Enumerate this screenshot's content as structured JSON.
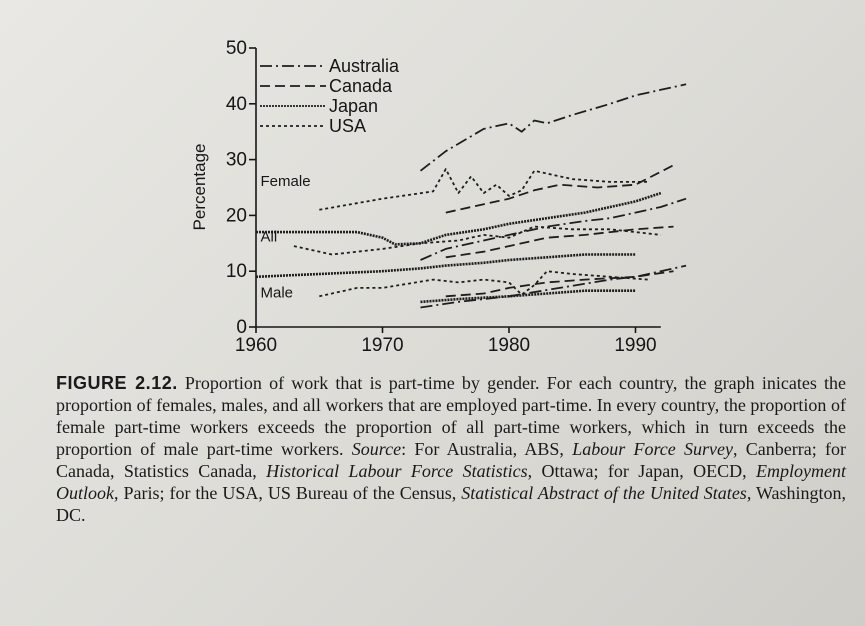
{
  "chart_data": {
    "type": "line",
    "title": "",
    "ylabel": "Percentage",
    "xlabel": "",
    "xlim": [
      1960,
      1995
    ],
    "ylim": [
      0,
      50
    ],
    "x_ticks": [
      1960,
      1970,
      1980,
      1990
    ],
    "y_ticks": [
      0,
      10,
      20,
      30,
      40,
      50
    ],
    "grid": false,
    "legend_position": "top-left",
    "legend": [
      {
        "name": "Australia",
        "dash": "12,4,2,4"
      },
      {
        "name": "Canada",
        "dash": "10,5"
      },
      {
        "name": "Japan",
        "dash": "2,1"
      },
      {
        "name": "USA",
        "dash": "3,3"
      }
    ],
    "group_labels": [
      {
        "text": "Female",
        "x": 1960.2,
        "y": 25.3
      },
      {
        "text": "All",
        "x": 1960.2,
        "y": 15.3
      },
      {
        "text": "Male",
        "x": 1960.2,
        "y": 5.3
      }
    ],
    "series": [
      {
        "country": "Australia",
        "group": "Female",
        "dash": "12,4,2,4",
        "width": 1.8,
        "x": [
          1973,
          1975,
          1978,
          1980,
          1981,
          1982,
          1983,
          1985,
          1988,
          1990,
          1992,
          1994
        ],
        "y": [
          28,
          31.5,
          35.5,
          36.5,
          35,
          37,
          36.5,
          38,
          40,
          41.5,
          42.5,
          43.5
        ]
      },
      {
        "country": "Canada",
        "group": "Female",
        "dash": "10,5",
        "width": 1.8,
        "x": [
          1975,
          1978,
          1980,
          1982,
          1984,
          1987,
          1990,
          1993
        ],
        "y": [
          20.5,
          22,
          23,
          24.5,
          25.5,
          25,
          25.5,
          29
        ]
      },
      {
        "country": "USA",
        "group": "Female",
        "dash": "3,3",
        "width": 1.8,
        "x": [
          1965,
          1970,
          1974,
          1975,
          1976,
          1977,
          1978,
          1979,
          1980,
          1981,
          1982,
          1985,
          1988,
          1991
        ],
        "y": [
          21,
          23,
          24.3,
          28.3,
          24,
          27,
          24,
          25.5,
          23.5,
          24.5,
          28,
          26.5,
          26,
          26
        ]
      },
      {
        "country": "Japan",
        "group": "Female",
        "dash": "2,1",
        "width": 2.6,
        "x": [
          1960,
          1968,
          1970,
          1971,
          1973,
          1975,
          1978,
          1980,
          1983,
          1986,
          1990,
          1992
        ],
        "y": [
          17,
          17,
          16,
          14.8,
          15,
          16.5,
          17.5,
          18.5,
          19.5,
          20.5,
          22.5,
          24
        ]
      },
      {
        "country": "Australia",
        "group": "All",
        "dash": "12,4,2,4",
        "width": 1.8,
        "x": [
          1973,
          1975,
          1978,
          1980,
          1983,
          1986,
          1988,
          1990,
          1992,
          1994
        ],
        "y": [
          12,
          14,
          15.5,
          16.5,
          18,
          19,
          19.5,
          20.5,
          21.5,
          23
        ]
      },
      {
        "country": "Canada",
        "group": "All",
        "dash": "10,5",
        "width": 1.8,
        "x": [
          1975,
          1978,
          1980,
          1983,
          1986,
          1988,
          1990,
          1993
        ],
        "y": [
          12.5,
          13.5,
          14.5,
          16,
          16.5,
          17,
          17.5,
          18
        ]
      },
      {
        "country": "USA",
        "group": "All",
        "dash": "3,3",
        "width": 1.8,
        "x": [
          1963,
          1966,
          1970,
          1973,
          1976,
          1978,
          1980,
          1982,
          1985,
          1988,
          1990,
          1992
        ],
        "y": [
          14.5,
          13,
          14,
          15,
          15.5,
          16.5,
          16,
          18,
          17.5,
          17.5,
          17,
          16.5
        ]
      },
      {
        "country": "Japan",
        "group": "All",
        "dash": "2,1",
        "width": 2.6,
        "x": [
          1960,
          1965,
          1970,
          1973,
          1975,
          1978,
          1980,
          1983,
          1986,
          1990
        ],
        "y": [
          9,
          9.5,
          10,
          10.5,
          11,
          11.5,
          12,
          12.5,
          13,
          13
        ]
      },
      {
        "country": "Australia",
        "group": "Male",
        "dash": "12,4,2,4",
        "width": 1.8,
        "x": [
          1973,
          1976,
          1980,
          1984,
          1988,
          1990,
          1992,
          1994
        ],
        "y": [
          3.5,
          4.5,
          5.5,
          7,
          8.5,
          9,
          10,
          11
        ]
      },
      {
        "country": "Canada",
        "group": "Male",
        "dash": "10,5",
        "width": 1.8,
        "x": [
          1975,
          1978,
          1980,
          1983,
          1986,
          1990,
          1993
        ],
        "y": [
          5.5,
          6,
          7,
          8,
          8.5,
          9,
          10
        ]
      },
      {
        "country": "USA",
        "group": "Male",
        "dash": "3,3",
        "width": 1.8,
        "x": [
          1965,
          1968,
          1970,
          1974,
          1976,
          1978,
          1980,
          1981,
          1982,
          1983,
          1985,
          1988,
          1991
        ],
        "y": [
          5.5,
          7,
          7,
          8.5,
          8,
          8.5,
          8,
          5.8,
          7.5,
          10,
          9.5,
          9,
          8.5
        ]
      },
      {
        "country": "Japan",
        "group": "Male",
        "dash": "2,1",
        "width": 2.6,
        "x": [
          1973,
          1976,
          1980,
          1983,
          1986,
          1990
        ],
        "y": [
          4.5,
          5,
          5.5,
          6,
          6.5,
          6.5
        ]
      }
    ]
  },
  "caption": {
    "label": "FIGURE 2.12.",
    "text_1": " Proportion of work that is part-time by gender. For each country, the graph inicates the proportion of females, males, and all workers that are employed part-time. In every country, the proportion of female part-time workers exceeds the proportion of all part-time workers, which in turn exceeds the proportion of male part-time workers. ",
    "source_label": "Source",
    "text_2": ": For Australia, ABS, ",
    "ital_1": "Labour Force Survey",
    "text_3": ", Canberra; for Canada, Statistics Canada, ",
    "ital_2": "Historical Labour Force Statistics",
    "text_4": ", Ottawa; for Japan, OECD, ",
    "ital_3": "Employment Outlook",
    "text_5": ", Paris; for the USA, US Bureau of the Census, ",
    "ital_4": "Statistical Abstract of the United States",
    "text_6": ", Washington, DC."
  }
}
